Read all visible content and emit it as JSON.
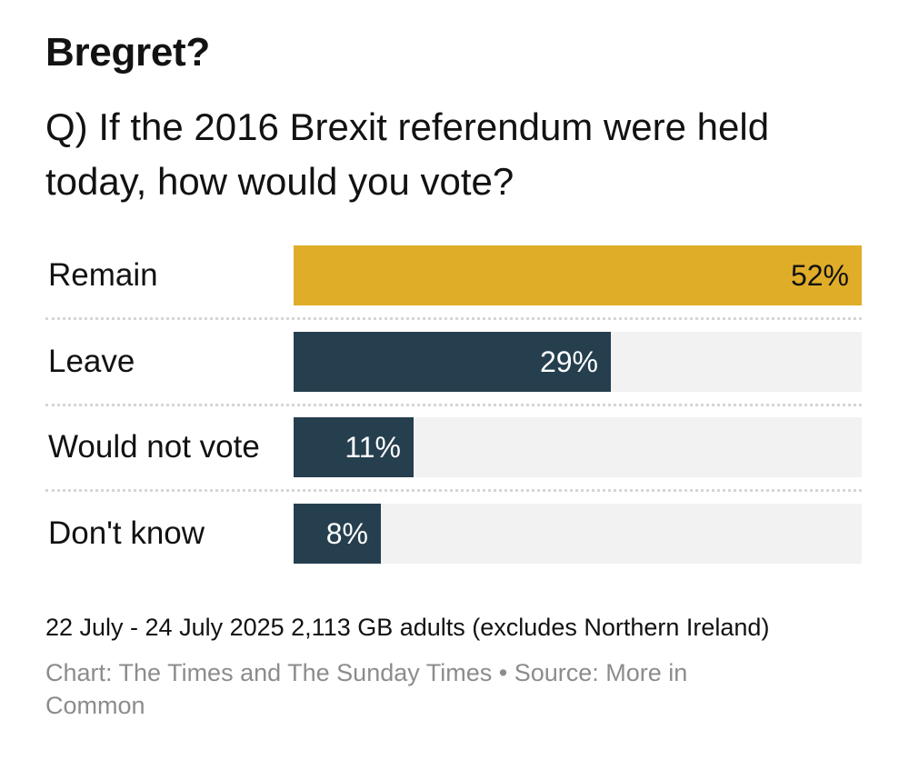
{
  "header": {
    "title": "Bregret?",
    "subtitle": "Q) If the 2016 Brexit referendum were held today, how would you vote?"
  },
  "colors": {
    "highlight": "#e0ad29",
    "bar": "#263f4f",
    "track": "#f2f2f2"
  },
  "chart_data": {
    "type": "bar",
    "orientation": "horizontal",
    "title": "Bregret?",
    "subtitle": "Q) If the 2016 Brexit referendum were held today, how would you vote?",
    "categories": [
      "Remain",
      "Leave",
      "Would not vote",
      "Don't know"
    ],
    "values": [
      52,
      29,
      11,
      8
    ],
    "value_labels": [
      "52%",
      "29%",
      "11%",
      "8%"
    ],
    "highlight_index": 0,
    "xlim": [
      0,
      52
    ],
    "grid": false,
    "legend": "none",
    "xlabel": "",
    "ylabel": ""
  },
  "footer": {
    "note": "22 July - 24 July 2025 2,113 GB adults (excludes Northern Ireland)",
    "source_line1": "Chart: The Times and The Sunday Times • Source: More in",
    "source_line2": "Common"
  }
}
